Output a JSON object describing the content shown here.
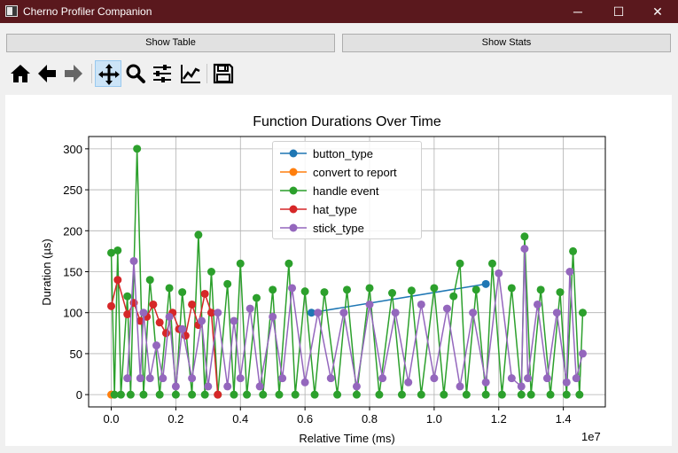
{
  "window": {
    "title": "Cherno Profiler Companion",
    "controls": {
      "minimize": "─",
      "maximize": "☐",
      "close": "✕"
    }
  },
  "buttons": {
    "show_table": "Show Table",
    "show_stats": "Show Stats"
  },
  "toolbar": {
    "tools": [
      "home-icon",
      "back-arrow-icon",
      "forward-arrow-icon",
      "pan-icon",
      "zoom-icon",
      "configure-subplots-icon",
      "edit-axes-icon",
      "save-icon"
    ],
    "active_tool": "pan-icon"
  },
  "chart_data": {
    "type": "line",
    "title": "Function Durations Over Time",
    "xlabel": "Relative Time (ms)",
    "ylabel": "Duration (µs)",
    "x_multiplier": "1e7",
    "xlim": [
      -0.07,
      1.53
    ],
    "ylim": [
      -15,
      315
    ],
    "x_ticks": [
      0.0,
      0.2,
      0.4,
      0.6,
      0.8,
      1.0,
      1.2,
      1.4
    ],
    "x_tick_labels": [
      "0.0",
      "0.2",
      "0.4",
      "0.6",
      "0.8",
      "1.0",
      "1.2",
      "1.4"
    ],
    "y_ticks": [
      0,
      50,
      100,
      150,
      200,
      250,
      300
    ],
    "y_tick_labels": [
      "0",
      "50",
      "100",
      "150",
      "200",
      "250",
      "300"
    ],
    "grid": true,
    "legend_position": "upper-center",
    "series": [
      {
        "name": "button_type",
        "color": "#1f77b4",
        "x": [
          0.62,
          1.16
        ],
        "y": [
          100,
          135
        ]
      },
      {
        "name": "convert to report",
        "color": "#ff7f0e",
        "x": [
          0.0
        ],
        "y": [
          0
        ]
      },
      {
        "name": "handle event",
        "color": "#2ca02c",
        "x": [
          0.0,
          0.01,
          0.02,
          0.03,
          0.05,
          0.06,
          0.08,
          0.1,
          0.12,
          0.15,
          0.18,
          0.2,
          0.22,
          0.25,
          0.27,
          0.29,
          0.31,
          0.33,
          0.36,
          0.38,
          0.4,
          0.42,
          0.45,
          0.47,
          0.5,
          0.52,
          0.55,
          0.57,
          0.6,
          0.63,
          0.66,
          0.7,
          0.73,
          0.76,
          0.8,
          0.83,
          0.87,
          0.9,
          0.93,
          0.96,
          1.0,
          1.03,
          1.06,
          1.08,
          1.1,
          1.13,
          1.16,
          1.18,
          1.21,
          1.24,
          1.27,
          1.28,
          1.3,
          1.33,
          1.36,
          1.39,
          1.41,
          1.43,
          1.45,
          1.46
        ],
        "y": [
          173,
          0,
          176,
          0,
          120,
          0,
          300,
          0,
          140,
          0,
          130,
          0,
          125,
          0,
          195,
          0,
          150,
          0,
          135,
          0,
          160,
          0,
          118,
          0,
          128,
          0,
          160,
          0,
          126,
          0,
          125,
          0,
          128,
          0,
          130,
          0,
          124,
          0,
          127,
          0,
          130,
          0,
          120,
          160,
          0,
          128,
          0,
          160,
          0,
          130,
          0,
          193,
          0,
          128,
          0,
          125,
          0,
          175,
          0,
          100
        ]
      },
      {
        "name": "hat_type",
        "color": "#d62728",
        "x": [
          0.0,
          0.02,
          0.05,
          0.07,
          0.09,
          0.11,
          0.13,
          0.15,
          0.17,
          0.19,
          0.21,
          0.23,
          0.25,
          0.27,
          0.29,
          0.31,
          0.33
        ],
        "y": [
          108,
          140,
          98,
          112,
          90,
          95,
          110,
          88,
          75,
          100,
          80,
          72,
          110,
          85,
          123,
          100,
          0
        ]
      },
      {
        "name": "stick_type",
        "color": "#9467bd",
        "x": [
          0.05,
          0.07,
          0.09,
          0.1,
          0.12,
          0.14,
          0.16,
          0.18,
          0.2,
          0.22,
          0.25,
          0.28,
          0.3,
          0.33,
          0.36,
          0.38,
          0.4,
          0.43,
          0.46,
          0.5,
          0.53,
          0.56,
          0.6,
          0.64,
          0.68,
          0.72,
          0.76,
          0.8,
          0.84,
          0.88,
          0.92,
          0.96,
          1.0,
          1.04,
          1.08,
          1.12,
          1.16,
          1.2,
          1.24,
          1.27,
          1.28,
          1.29,
          1.32,
          1.35,
          1.38,
          1.41,
          1.42,
          1.44,
          1.46
        ],
        "y": [
          20,
          163,
          20,
          100,
          20,
          60,
          20,
          95,
          10,
          80,
          20,
          90,
          10,
          100,
          10,
          90,
          20,
          105,
          10,
          95,
          20,
          130,
          15,
          100,
          20,
          100,
          10,
          110,
          20,
          100,
          15,
          110,
          20,
          105,
          10,
          100,
          15,
          148,
          20,
          10,
          178,
          20,
          110,
          20,
          100,
          15,
          150,
          20,
          50
        ]
      }
    ]
  }
}
